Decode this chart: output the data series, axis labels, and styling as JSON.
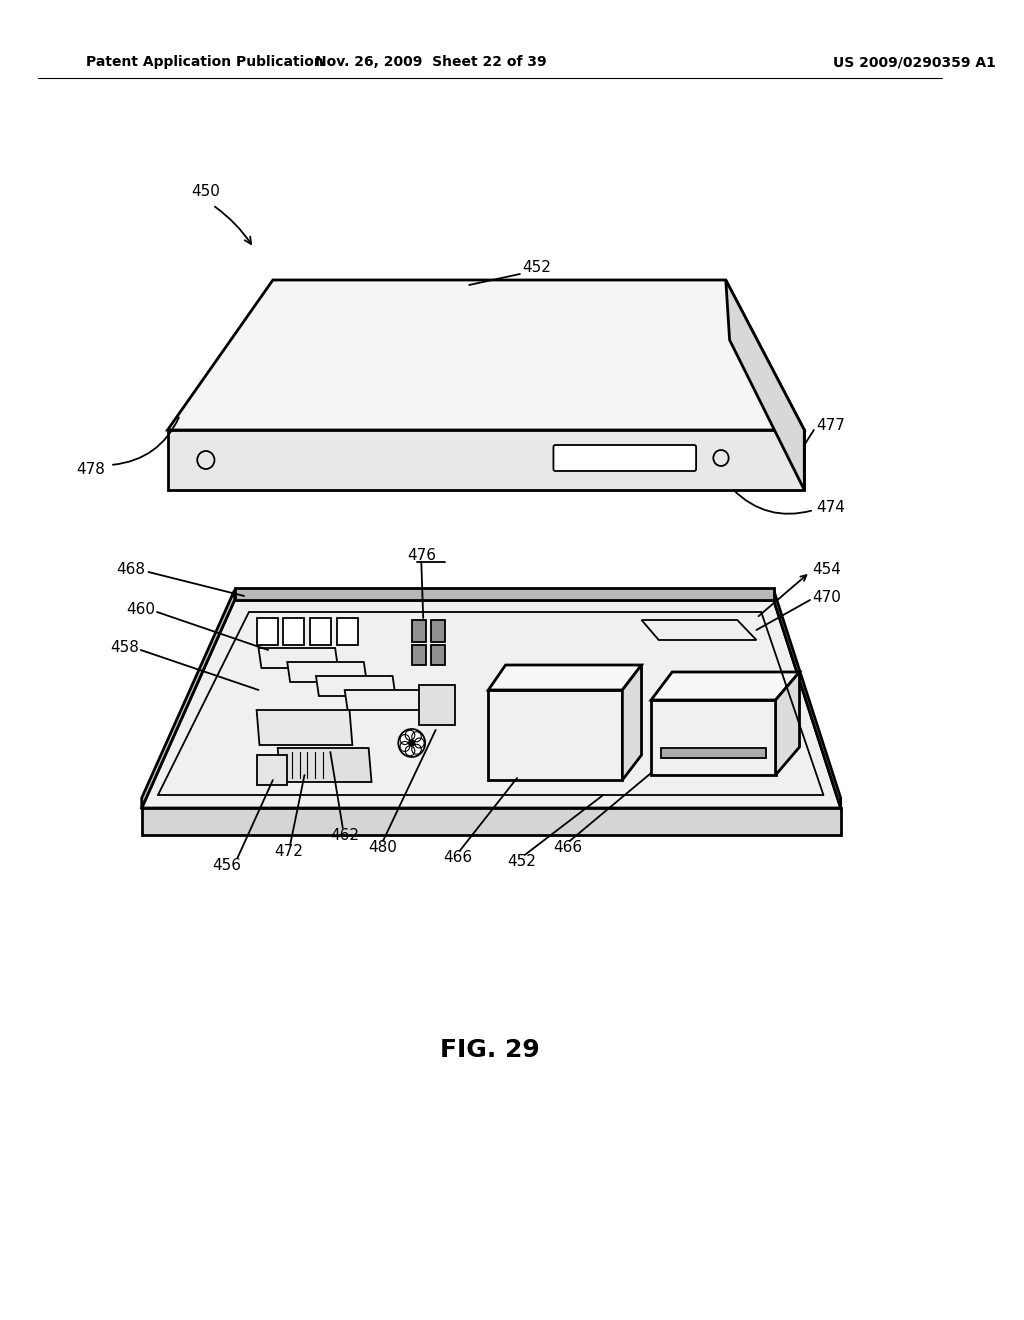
{
  "header_left": "Patent Application Publication",
  "header_mid": "Nov. 26, 2009  Sheet 22 of 39",
  "header_right": "US 2009/0290359 A1",
  "figure_label": "FIG. 29",
  "bg_color": "#ffffff",
  "lc": "#000000"
}
